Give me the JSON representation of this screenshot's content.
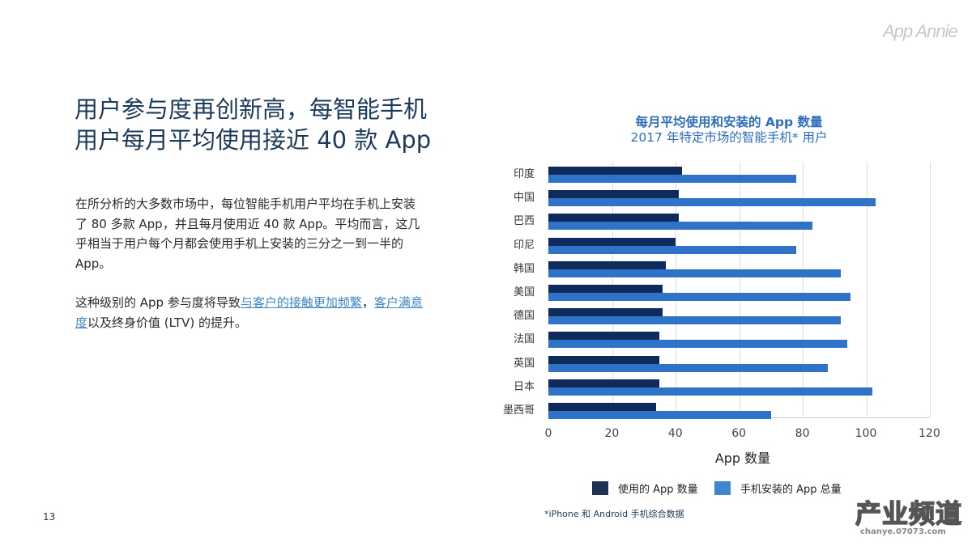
{
  "brand": "App Annie",
  "title_lines": [
    "用户参与度再创新高，每智能手机",
    "用户每月平均使用接近 40 款 App"
  ],
  "body": {
    "p1": "在所分析的大多数市场中，每位智能手机用户平均在手机上安装了 80 多款 App，并且每月使用近 40 款 App。平均而言，这几乎相当于用户每个月都会使用手机上安装的三分之一到一半的 App。",
    "p2_pre": "这种级别的 App 参与度将导致",
    "p2_link1": "与客户的接触更加频繁",
    "p2_mid": "，",
    "p2_link2": "客户满意度",
    "p2_post": "以及终身价值 (LTV) 的提升。"
  },
  "page_number": "13",
  "footnote": "*iPhone 和 Android 手机综合数据",
  "watermark": {
    "main": "产业频道",
    "sub": "chanye.07073.com"
  },
  "colors": {
    "used": "#0f2a5c",
    "installed": "#2f73c9",
    "title": "#1b3a5c",
    "chart_title": "#2e6ebf"
  },
  "chart_data": {
    "type": "bar",
    "orientation": "horizontal",
    "title": "每月平均使用和安装的 App 数量",
    "subtitle": "2017 年特定市场的智能手机* 用户",
    "categories": [
      "印度",
      "中国",
      "巴西",
      "印尼",
      "韩国",
      "美国",
      "德国",
      "法国",
      "英国",
      "日本",
      "墨西哥"
    ],
    "series": [
      {
        "name": "使用的 App 数量",
        "values": [
          42,
          41,
          41,
          40,
          37,
          36,
          36,
          35,
          35,
          35,
          34
        ]
      },
      {
        "name": "手机安装的 App 总量",
        "values": [
          78,
          103,
          83,
          78,
          92,
          95,
          92,
          94,
          88,
          102,
          70
        ]
      }
    ],
    "xlabel": "App 数量",
    "ylabel": "",
    "xlim": [
      0,
      120
    ],
    "xticks": [
      "0",
      "20",
      "40",
      "60",
      "80",
      "100",
      "120"
    ],
    "grid": true,
    "legend_position": "bottom"
  }
}
